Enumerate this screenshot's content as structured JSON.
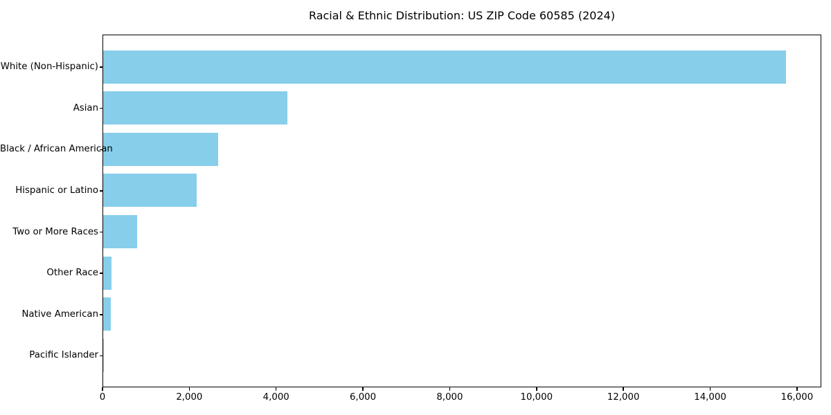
{
  "chart_data": {
    "type": "bar",
    "orientation": "horizontal",
    "title": "Racial & Ethnic Distribution: US ZIP Code 60585 (2024)",
    "categories": [
      "White (Non-Hispanic)",
      "Asian",
      "Black / African American",
      "Hispanic or Latino",
      "Two or More Races",
      "Other Race",
      "Native American",
      "Pacific Islander"
    ],
    "values": [
      15770,
      4260,
      2660,
      2160,
      780,
      195,
      180,
      10
    ],
    "xlabel": "",
    "ylabel": "",
    "xlim": [
      0,
      16560
    ],
    "xticks": [
      0,
      2000,
      4000,
      6000,
      8000,
      10000,
      12000,
      14000,
      16000
    ],
    "xtick_labels": [
      "0",
      "2,000",
      "4,000",
      "6,000",
      "8,000",
      "10,000",
      "12,000",
      "14,000",
      "16,000"
    ],
    "bar_color": "#87CEEB",
    "grid": false,
    "legend": null
  }
}
